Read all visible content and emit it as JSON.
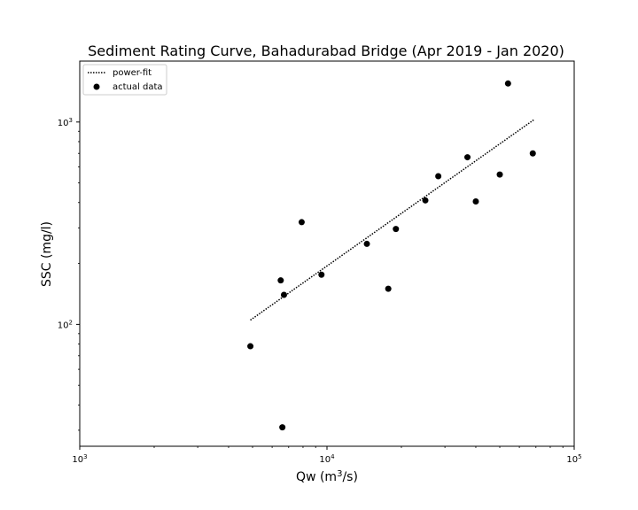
{
  "chart_data": {
    "type": "scatter",
    "title": "Sediment Rating Curve, Bahadurabad Bridge (Apr 2019 - Jan 2020)",
    "xlabel": "Qw (m³/s)",
    "ylabel": "SSC (mg/l)",
    "x_scale": "log",
    "y_scale": "log",
    "xlim": [
      1000,
      100000
    ],
    "ylim": [
      25,
      2000
    ],
    "x_ticks": [
      {
        "value": 1000,
        "base": "10",
        "exp": "3"
      },
      {
        "value": 10000,
        "base": "10",
        "exp": "4"
      },
      {
        "value": 100000,
        "base": "10",
        "exp": "5"
      }
    ],
    "y_ticks": [
      {
        "value": 100,
        "base": "10",
        "exp": "2"
      },
      {
        "value": 1000,
        "base": "10",
        "exp": "3"
      }
    ],
    "grid": false,
    "legend_position": "top-left",
    "series": [
      {
        "name": "power-fit",
        "style": "dotted-line",
        "color": "#000000",
        "x": [
          4900,
          69000
        ],
        "y": [
          105,
          1030
        ]
      },
      {
        "name": "actual data",
        "style": "markers",
        "color": "#000000",
        "x": [
          4900,
          6500,
          6600,
          6700,
          7900,
          9500,
          14500,
          17700,
          19000,
          25000,
          28200,
          37000,
          40000,
          50000,
          54000,
          68000
        ],
        "y": [
          78,
          165,
          31,
          140,
          320,
          176,
          250,
          150,
          296,
          410,
          540,
          670,
          405,
          550,
          1550,
          700
        ]
      }
    ]
  }
}
